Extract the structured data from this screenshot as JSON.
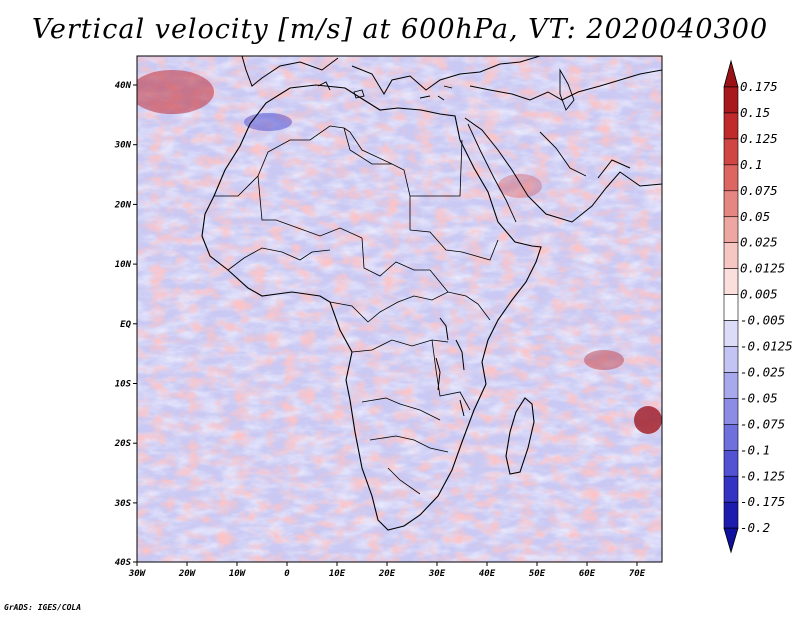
{
  "title": "Vertical velocity [m/s] at 600hPa, VT: 2020040300",
  "credit": "GrADS: IGES/COLA",
  "map": {
    "region": "Africa",
    "lat_ticks": [
      "40N",
      "30N",
      "20N",
      "10N",
      "EQ",
      "10S",
      "20S",
      "30S",
      "40S"
    ],
    "lon_ticks": [
      "30W",
      "20W",
      "10W",
      "0",
      "10E",
      "20E",
      "30E",
      "40E",
      "50E",
      "60E",
      "70E"
    ]
  },
  "colorbar": {
    "labels": [
      "0.175",
      "0.15",
      "0.125",
      "0.1",
      "0.075",
      "0.05",
      "0.025",
      "0.0125",
      "0.005",
      "-0.005",
      "-0.0125",
      "-0.025",
      "-0.05",
      "-0.075",
      "-0.1",
      "-0.125",
      "-0.175",
      "-0.2"
    ],
    "colors": [
      "#a8181c",
      "#c02a2c",
      "#cf4644",
      "#dc6662",
      "#e68683",
      "#eea6a2",
      "#f5c6c2",
      "#fadfdc",
      "#ffffff",
      "#dcdcf8",
      "#c4c4f4",
      "#a8a8ec",
      "#8c8ce4",
      "#7070dc",
      "#5252d2",
      "#3434c4",
      "#1c1cae"
    ],
    "low_end_color": "#1010a0",
    "high_end_color": "#9a1216"
  },
  "colors": {
    "positive": "#d94848",
    "negative": "#5a5ae0",
    "coast": "#000000"
  }
}
